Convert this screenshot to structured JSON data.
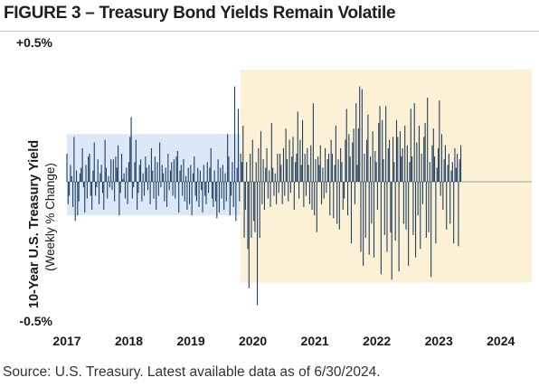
{
  "figure_title": "FIGURE 3 – Treasury Bond Yields Remain Volatile",
  "source_note": "Source: U.S. Treasury. Latest available data as of 6/30/2024.",
  "colors": {
    "bars": "#1f3f66",
    "pre_covid_band": "#dce8f5",
    "post_covid_band": "#fcf1d4",
    "baseline": "#9a9a9a"
  },
  "chart_data": {
    "type": "bar",
    "title": "FIGURE 3 – Treasury Bond Yields Remain Volatile",
    "ylabel": "10-Year U.S. Treasury Yield",
    "ylabel_sub": "(Weekly % Change)",
    "xlabel": "",
    "ylim": [
      -0.5,
      0.5
    ],
    "xlim": [
      2017.0,
      2024.5
    ],
    "y_ticks": [
      {
        "value": 0.5,
        "label": "+0.5%"
      },
      {
        "value": -0.5,
        "label": "-0.5%"
      }
    ],
    "x_ticks": [
      {
        "value": 2017,
        "label": "2017"
      },
      {
        "value": 2018,
        "label": "2018"
      },
      {
        "value": 2019,
        "label": "2019"
      },
      {
        "value": 2020,
        "label": "2020"
      },
      {
        "value": 2021,
        "label": "2021"
      },
      {
        "value": 2022,
        "label": "2022"
      },
      {
        "value": 2023,
        "label": "2023"
      },
      {
        "value": 2024,
        "label": "2024"
      }
    ],
    "shaded_regions": [
      {
        "x_start": 2017.0,
        "x_end": 2019.8,
        "y_low": -0.12,
        "y_high": 0.17,
        "color": "#dce8f5"
      },
      {
        "x_start": 2019.8,
        "x_end": 2024.5,
        "y_low": -0.36,
        "y_high": 0.4,
        "color": "#fcf1d4"
      }
    ],
    "grid": false,
    "series": [
      {
        "x_start": 2017.0,
        "x_step": 0.0192,
        "values": [
          0.1,
          -0.08,
          -0.05,
          0.06,
          0.02,
          -0.09,
          0.16,
          -0.14,
          0.04,
          -0.12,
          -0.07,
          0.03,
          0.05,
          0.12,
          -0.02,
          -0.11,
          0.06,
          -0.06,
          0.09,
          0.1,
          -0.05,
          -0.1,
          0.04,
          0.14,
          -0.05,
          -0.02,
          0.08,
          -0.08,
          0.03,
          0.06,
          -0.04,
          -0.1,
          0.15,
          0.05,
          -0.06,
          0.02,
          -0.02,
          0.08,
          -0.03,
          0.08,
          -0.07,
          0.09,
          0.05,
          0.13,
          -0.12,
          -0.04,
          0.1,
          0.01,
          0.03,
          -0.06,
          0.05,
          -0.08,
          0.07,
          0.16,
          0.23,
          -0.06,
          -0.02,
          0.07,
          0.15,
          -0.1,
          -0.04,
          0.06,
          0.08,
          -0.07,
          0.03,
          -0.05,
          0.09,
          0.05,
          -0.03,
          0.06,
          -0.08,
          0.12,
          0.04,
          -0.06,
          0.09,
          -0.1,
          0.07,
          -0.05,
          0.14,
          -0.02,
          0.06,
          0.03,
          -0.07,
          0.05,
          -0.09,
          0.1,
          -0.03,
          0.04,
          0.07,
          -0.05,
          0.08,
          -0.06,
          0.09,
          0.11,
          -0.11,
          0.04,
          0.06,
          -0.05,
          0.08,
          -0.07,
          0.02,
          -0.1,
          0.05,
          -0.08,
          0.06,
          -0.12,
          0.03,
          0.09,
          -0.05,
          -0.07,
          0.05,
          -0.09,
          0.04,
          -0.03,
          -0.11,
          0.06,
          -0.05,
          -0.08,
          0.07,
          -0.04,
          0.05,
          0.12,
          -0.06,
          -0.09,
          0.04,
          -0.07,
          -0.13,
          0.08,
          -0.11,
          0.05,
          -0.06,
          0.06,
          -0.1,
          0.03,
          -0.07,
          0.17,
          0.09,
          -0.12,
          -0.05,
          0.07,
          -0.09,
          0.34,
          -0.14,
          0.05,
          0.26,
          -0.07,
          0.1,
          0.07,
          0.2,
          -0.2,
          -0.1,
          0.07,
          -0.24,
          -0.38,
          0.1,
          -0.2,
          0.15,
          -0.14,
          -0.18,
          0.07,
          -0.44,
          0.12,
          -0.2,
          0.18,
          -0.08,
          0.08,
          -0.1,
          0.05,
          0.12,
          -0.06,
          0.04,
          -0.09,
          0.21,
          0.05,
          -0.05,
          0.03,
          -0.08,
          0.1,
          -0.04,
          0.1,
          0.06,
          -0.08,
          0.12,
          -0.05,
          0.19,
          0.08,
          -0.07,
          0.15,
          -0.04,
          0.09,
          0.16,
          -0.1,
          0.07,
          0.1,
          0.25,
          -0.06,
          0.15,
          0.06,
          0.22,
          -0.09,
          0.1,
          -0.05,
          0.12,
          0.06,
          -0.08,
          0.13,
          -0.1,
          0.28,
          -0.12,
          0.08,
          -0.18,
          0.09,
          0.06,
          0.13,
          -0.08,
          0.05,
          -0.06,
          0.12,
          -0.04,
          0.08,
          0.1,
          -0.12,
          0.15,
          0.1,
          -0.13,
          0.06,
          0.2,
          -0.15,
          0.08,
          -0.17,
          0.12,
          0.07,
          -0.1,
          -0.06,
          0.15,
          0.26,
          -0.12,
          0.17,
          0.09,
          -0.22,
          0.14,
          0.19,
          -0.08,
          0.28,
          0.06,
          0.19,
          0.34,
          -0.25,
          0.33,
          -0.3,
          0.1,
          -0.2,
          0.15,
          0.24,
          -0.26,
          0.09,
          -0.15,
          0.18,
          -0.27,
          0.11,
          0.07,
          -0.1,
          0.21,
          0.27,
          -0.33,
          0.22,
          0.08,
          -0.19,
          0.27,
          -0.25,
          0.12,
          0.15,
          -0.18,
          -0.35,
          0.16,
          0.07,
          -0.21,
          0.22,
          0.16,
          -0.32,
          0.18,
          0.09,
          0.12,
          -0.15,
          0.2,
          -0.17,
          0.13,
          -0.3,
          0.07,
          0.26,
          0.09,
          -0.19,
          0.28,
          -0.27,
          0.14,
          -0.12,
          0.2,
          -0.24,
          0.1,
          -0.08,
          0.16,
          0.21,
          -0.2,
          0.3,
          -0.18,
          0.07,
          -0.34,
          0.13,
          0.19,
          0.09,
          -0.22,
          0.05,
          0.12,
          0.29,
          -0.05,
          0.17,
          -0.1,
          0.08,
          0.13,
          -0.17,
          0.06,
          0.1,
          -0.15,
          0.04,
          0.07,
          -0.22,
          0.12,
          0.05,
          0.1,
          -0.23,
          0.08,
          0.13
        ]
      }
    ]
  }
}
